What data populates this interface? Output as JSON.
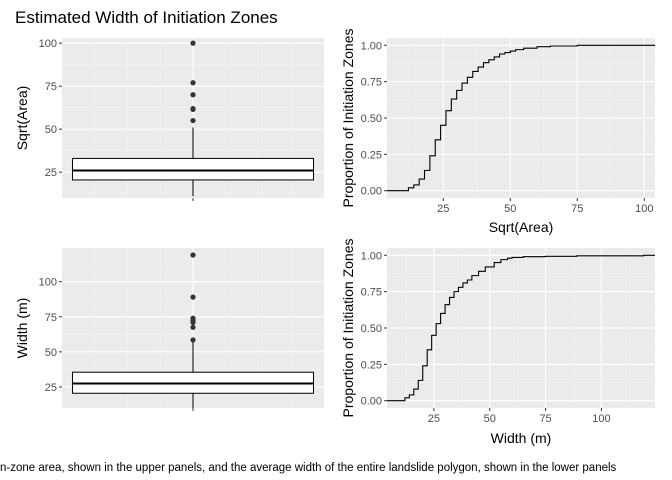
{
  "figure": {
    "title": "Estimated Width of Initiation Zones",
    "caption": "n-zone area, shown in the upper panels, and the average width of the entire landslide polygon, shown in the lower panels"
  },
  "colors": {
    "panel_bg": "#ebebeb",
    "grid_major": "#ffffff",
    "grid_minor": "#f5f5f5",
    "line": "#000000",
    "point": "#333333",
    "tick_text": "#4d4d4d"
  },
  "chart_data": [
    {
      "id": "box-area",
      "type": "box",
      "title": "",
      "xlabel": "",
      "ylabel": "Sqrt(Area)",
      "ylim": [
        10,
        103
      ],
      "yticks": [
        25,
        50,
        75,
        100
      ],
      "grid": true,
      "box": {
        "min": 11,
        "q1": 20.5,
        "median": 26,
        "q3": 33,
        "max": 51
      },
      "outliers": [
        100,
        77,
        70,
        62,
        61.5,
        55
      ]
    },
    {
      "id": "ecdf-area",
      "type": "line",
      "title": "",
      "xlabel": "Sqrt(Area)",
      "ylabel": "Proportion of Initiation Zones",
      "xlim": [
        4,
        104
      ],
      "ylim": [
        -0.05,
        1.05
      ],
      "xticks": [
        25,
        50,
        75,
        100
      ],
      "yticks": [
        0.0,
        0.25,
        0.5,
        0.75,
        1.0
      ],
      "ytick_labels": [
        "0.00",
        "0.25",
        "0.50",
        "0.75",
        "1.00"
      ],
      "grid": true,
      "x": [
        4,
        10,
        12,
        14,
        16,
        18,
        20,
        22,
        24,
        26,
        28,
        30,
        32,
        34,
        36,
        38,
        40,
        42,
        44,
        46,
        48,
        50,
        52,
        55,
        60,
        65,
        70,
        75,
        80,
        90,
        100,
        104
      ],
      "y": [
        0,
        0,
        0.02,
        0.04,
        0.08,
        0.14,
        0.24,
        0.35,
        0.45,
        0.55,
        0.63,
        0.69,
        0.74,
        0.78,
        0.82,
        0.85,
        0.88,
        0.9,
        0.92,
        0.94,
        0.95,
        0.96,
        0.97,
        0.98,
        0.99,
        0.995,
        0.995,
        1.0,
        1.0,
        1.0,
        1.0,
        1.0
      ]
    },
    {
      "id": "box-width",
      "type": "box",
      "title": "",
      "xlabel": "",
      "ylabel": "Width (m)",
      "ylim": [
        10,
        124
      ],
      "yticks": [
        25,
        50,
        75,
        100
      ],
      "grid": true,
      "box": {
        "min": 10,
        "q1": 20.5,
        "median": 27.5,
        "q3": 35.5,
        "max": 57
      },
      "outliers": [
        119,
        89,
        74,
        72.5,
        71,
        67.5,
        58.5
      ]
    },
    {
      "id": "ecdf-width",
      "type": "line",
      "title": "",
      "xlabel": "Width (m)",
      "ylabel": "Proportion of Initiation Zones",
      "xlim": [
        4,
        124
      ],
      "ylim": [
        -0.05,
        1.05
      ],
      "xticks": [
        25,
        50,
        75,
        100
      ],
      "yticks": [
        0.0,
        0.25,
        0.5,
        0.75,
        1.0
      ],
      "ytick_labels": [
        "0.00",
        "0.25",
        "0.50",
        "0.75",
        "1.00"
      ],
      "grid": true,
      "x": [
        4,
        10,
        12,
        14,
        16,
        18,
        20,
        22,
        24,
        26,
        28,
        30,
        32,
        34,
        36,
        38,
        40,
        42,
        45,
        48,
        52,
        55,
        58,
        60,
        65,
        70,
        75,
        85,
        89,
        100,
        110,
        119,
        124
      ],
      "y": [
        0,
        0,
        0.02,
        0.04,
        0.08,
        0.14,
        0.24,
        0.35,
        0.45,
        0.53,
        0.6,
        0.66,
        0.71,
        0.75,
        0.78,
        0.81,
        0.83,
        0.86,
        0.89,
        0.92,
        0.95,
        0.97,
        0.98,
        0.985,
        0.99,
        0.99,
        0.993,
        0.993,
        0.996,
        0.996,
        0.996,
        1.0,
        1.0
      ]
    }
  ]
}
